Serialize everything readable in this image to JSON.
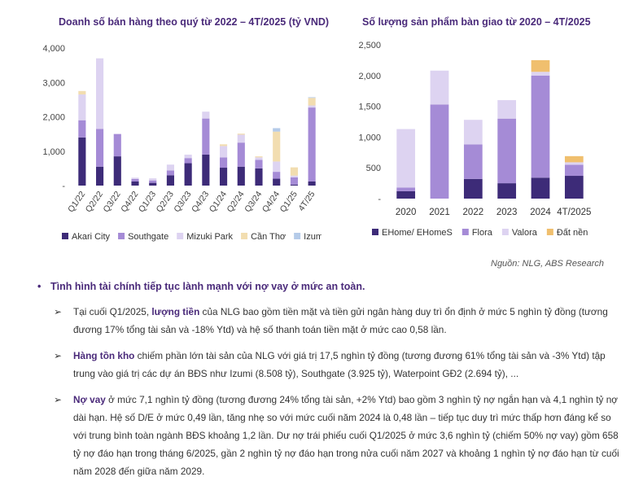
{
  "colors": {
    "akari": "#3d2b78",
    "southgate": "#a58bd6",
    "mizuki": "#ddd3f1",
    "cantho": "#f2ddb0",
    "izumi": "#b5cbe9",
    "ehome": "#3d2b78",
    "flora": "#a58bd6",
    "valora": "#ddd3f1",
    "datnen": "#f0bf6e",
    "title": "#4a2a7a"
  },
  "chart_data": [
    {
      "type": "bar",
      "stacked": true,
      "title": "Doanh số bán hàng theo quý từ 2022 – 4T/2025 (tỷ VND)",
      "categories": [
        "Q1/22",
        "Q2/22",
        "Q3/22",
        "Q4/22",
        "Q1/23",
        "Q2/23",
        "Q3/23",
        "Q4/23",
        "Q1/24",
        "Q2/24",
        "Q3/24",
        "Q4/24",
        "Q1/25",
        "4T/25"
      ],
      "yticks": [
        "-",
        "1,000",
        "2,000",
        "3,000",
        "4,000"
      ],
      "ylim": [
        0,
        4000
      ],
      "grid": false,
      "legend_position": "bottom",
      "series": [
        {
          "name": "Akari City",
          "color": "#3d2b78",
          "values": [
            1400,
            550,
            850,
            120,
            80,
            300,
            650,
            900,
            520,
            550,
            500,
            200,
            30,
            120
          ]
        },
        {
          "name": "Southgate",
          "color": "#a58bd6",
          "values": [
            500,
            1100,
            650,
            70,
            70,
            140,
            150,
            1050,
            300,
            700,
            250,
            200,
            210,
            2150
          ]
        },
        {
          "name": "Mizuki Park",
          "color": "#ddd3f1",
          "values": [
            750,
            2050,
            0,
            40,
            60,
            170,
            100,
            200,
            330,
            230,
            70,
            300,
            50,
            60
          ]
        },
        {
          "name": "Cần Thơ",
          "color": "#f2ddb0",
          "values": [
            100,
            0,
            0,
            0,
            0,
            0,
            0,
            0,
            50,
            30,
            30,
            870,
            240,
            220
          ]
        },
        {
          "name": "Izumi City",
          "color": "#b5cbe9",
          "values": [
            0,
            0,
            0,
            0,
            0,
            0,
            0,
            0,
            0,
            0,
            0,
            100,
            0,
            20
          ]
        }
      ]
    },
    {
      "type": "bar",
      "stacked": true,
      "title": "Số lượng sản phẩm bàn giao từ 2020 – 4T/2025",
      "categories": [
        "2020",
        "2021",
        "2022",
        "2023",
        "2024",
        "4T/2025"
      ],
      "yticks": [
        "-",
        "500",
        "1,000",
        "1,500",
        "2,000",
        "2,500"
      ],
      "ylim": [
        0,
        2500
      ],
      "grid": false,
      "legend_position": "bottom",
      "series": [
        {
          "name": "EHome/ EHomeS",
          "color": "#3d2b78",
          "values": [
            120,
            0,
            320,
            250,
            340,
            370
          ]
        },
        {
          "name": "Flora",
          "color": "#a58bd6",
          "values": [
            60,
            1530,
            560,
            1050,
            1660,
            180
          ]
        },
        {
          "name": "Valora",
          "color": "#ddd3f1",
          "values": [
            950,
            550,
            400,
            300,
            60,
            40
          ]
        },
        {
          "name": "Đất nền",
          "color": "#f0bf6e",
          "values": [
            0,
            0,
            0,
            0,
            190,
            100
          ]
        }
      ]
    }
  ],
  "source_note": "Nguồn: NLG, ABS Research",
  "text": {
    "bullet_dot": "•",
    "arrow": "➢",
    "heading": "Tình hình tài chính tiếp tục lành mạnh với nợ vay ở mức an toàn.",
    "p1_pre": "Tại cuối Q1/2025, ",
    "p1_bold": "lượng tiền",
    "p1_post": " của NLG bao gồm tiền mặt và tiền gửi ngân hàng duy trì ổn định ở mức 5 nghìn tỷ đồng (tương đương 17% tổng tài sản và -18% Ytd) và hệ số thanh toán tiền mặt ở mức cao 0,58 lần.",
    "p2_bold": "Hàng tồn kho",
    "p2_post": " chiếm phần lớn tài sản của NLG với giá trị 17,5 nghìn tỷ đồng (tương đương 61% tổng tài sản và -3% Ytd) tập trung vào giá trị các dự án BĐS như Izumi (8.508 tỷ), Southgate (3.925 tỷ), Waterpoint GĐ2 (2.694 tỷ), ...",
    "p3_bold": "Nợ vay",
    "p3_post": " ở mức 7,1 nghìn tỷ đồng (tương đương 24% tổng tài sản, +2% Ytd) bao gồm 3 nghìn tỷ nợ ngắn hạn và 4,1 nghìn tỷ nợ dài hạn. Hệ số D/E ở mức 0,49 lần, tăng nhẹ so với mức cuối năm 2024 là 0,48 lần – tiếp tục duy trì mức thấp hơn đáng kể so với trung bình toàn ngành BĐS khoảng 1,2 lần. Dư nợ trái phiếu cuối Q1/2025 ở mức 3,6 nghìn tỷ (chiếm 50% nợ vay) gồm 658 tỷ nợ đáo hạn trong tháng 6/2025, gần 2 nghìn tỷ nợ đáo hạn trong nửa cuối năm 2027 và khoảng 1 nghìn tỷ nợ đáo hạn từ cuối năm 2028 đến giữa năm 2029."
  }
}
